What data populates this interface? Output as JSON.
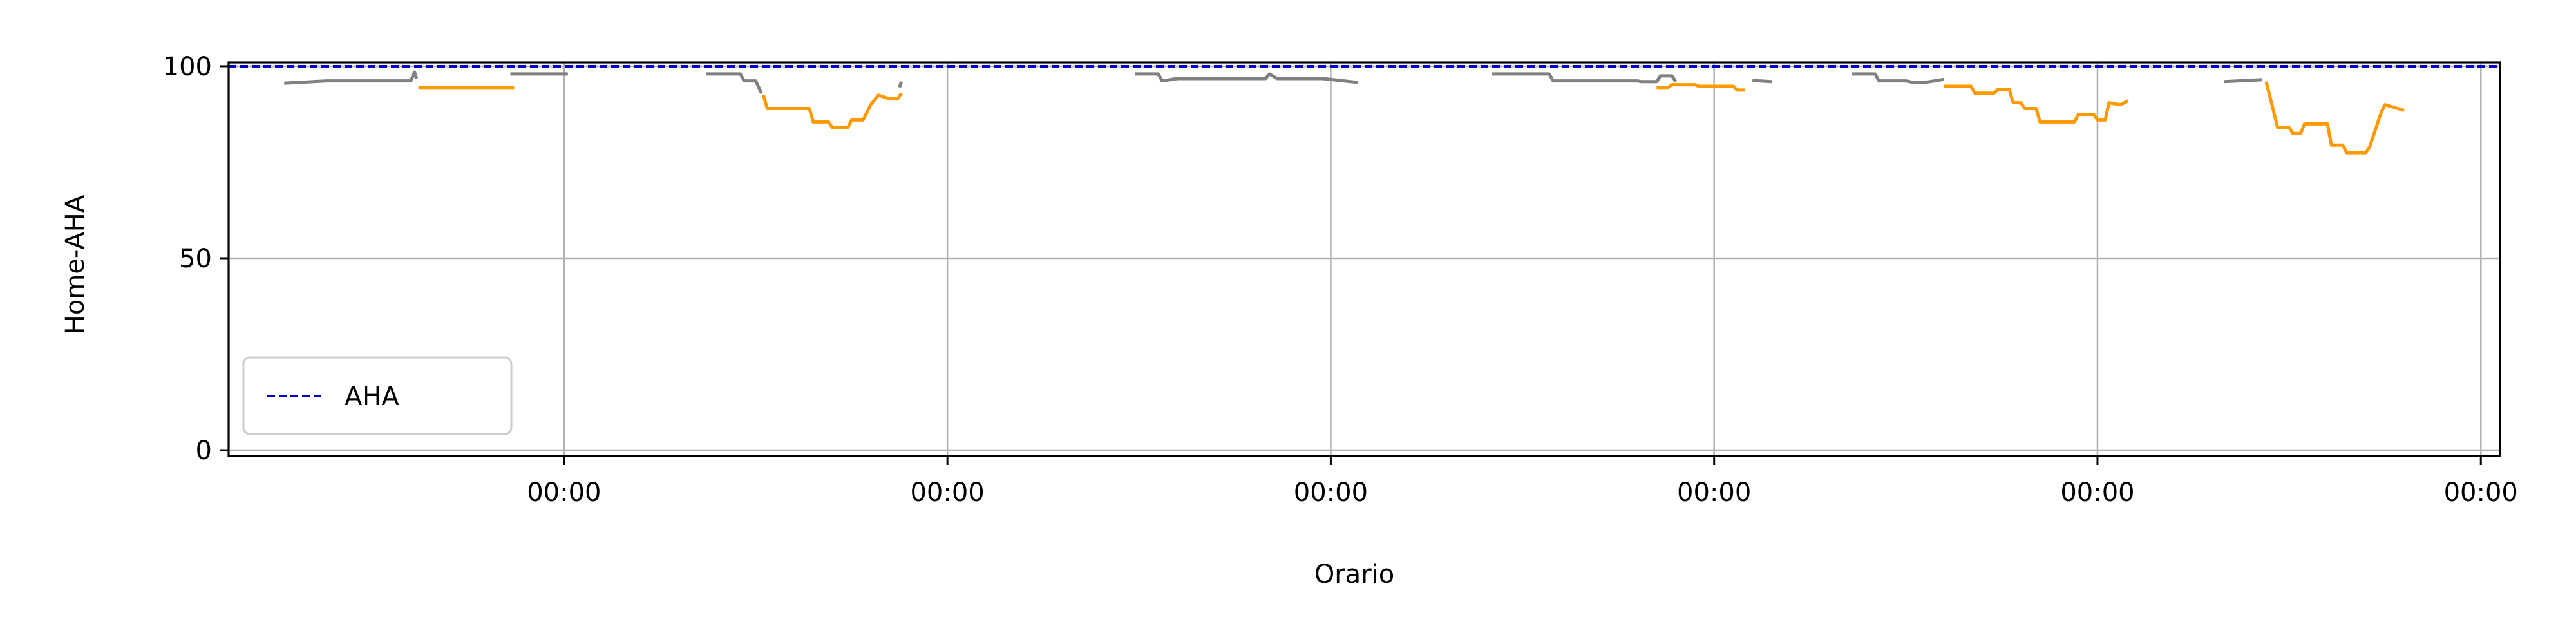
{
  "chart_data": {
    "type": "line",
    "title": "",
    "xlabel": "Orario",
    "ylabel": "Home-AHA",
    "xlim": [
      -0.875,
      5.05
    ],
    "ylim": [
      -1.5,
      101
    ],
    "x_tick_values": [
      0,
      1,
      2,
      3,
      4,
      5
    ],
    "x_tick_labels": [
      "00:00",
      "00:00",
      "00:00",
      "00:00",
      "00:00",
      "00:00"
    ],
    "y_tick_values": [
      0,
      50,
      100
    ],
    "y_tick_labels": [
      "0",
      "50",
      "100"
    ],
    "grid": true,
    "legend": {
      "placement": "lower-left",
      "entries": [
        {
          "name": "AHA",
          "color": "#0000cc",
          "style": "dashed"
        }
      ]
    },
    "reference_line": {
      "name": "AHA",
      "y": 100,
      "color": "#0000cc",
      "style": "dashed"
    },
    "colors": {
      "gray_segments": "#808080",
      "orange_segments": "#ff9900"
    },
    "segments": [
      {
        "color": "gray",
        "points": [
          [
            -0.73,
            95.6
          ],
          [
            -0.62,
            96.2
          ],
          [
            -0.4,
            96.2
          ],
          [
            -0.39,
            98.5
          ],
          [
            -0.385,
            96.8
          ]
        ]
      },
      {
        "color": "orange",
        "points": [
          [
            -0.38,
            94.5
          ],
          [
            -0.13,
            94.5
          ]
        ]
      },
      {
        "color": "gray",
        "points": [
          [
            -0.14,
            98
          ],
          [
            0.01,
            98
          ]
        ]
      },
      {
        "color": "gray",
        "points": [
          [
            0.37,
            98
          ],
          [
            0.46,
            98
          ],
          [
            0.47,
            96.2
          ],
          [
            0.5,
            96.2
          ],
          [
            0.515,
            93
          ]
        ]
      },
      {
        "color": "orange",
        "points": [
          [
            0.52,
            92.5
          ],
          [
            0.53,
            89
          ],
          [
            0.64,
            89
          ],
          [
            0.65,
            85.5
          ],
          [
            0.69,
            85.5
          ],
          [
            0.7,
            84
          ],
          [
            0.74,
            84
          ],
          [
            0.75,
            86
          ],
          [
            0.78,
            86
          ],
          [
            0.8,
            90
          ],
          [
            0.82,
            92.5
          ],
          [
            0.85,
            91.5
          ],
          [
            0.87,
            91.5
          ],
          [
            0.88,
            93
          ]
        ]
      },
      {
        "color": "gray",
        "points": [
          [
            0.875,
            94.5
          ],
          [
            0.88,
            96
          ]
        ]
      },
      {
        "color": "gray",
        "points": [
          [
            1.49,
            98
          ],
          [
            1.55,
            98
          ],
          [
            1.56,
            96.2
          ],
          [
            1.6,
            96.8
          ],
          [
            1.83,
            96.8
          ],
          [
            1.84,
            98
          ],
          [
            1.86,
            96.8
          ],
          [
            1.98,
            96.8
          ],
          [
            2.07,
            95.8
          ]
        ]
      },
      {
        "color": "gray",
        "points": [
          [
            2.42,
            98
          ],
          [
            2.57,
            98
          ],
          [
            2.58,
            96.2
          ],
          [
            2.8,
            96.2
          ],
          [
            2.81,
            96
          ],
          [
            2.85,
            96
          ],
          [
            2.86,
            97.5
          ],
          [
            2.89,
            97.5
          ],
          [
            2.9,
            96
          ]
        ]
      },
      {
        "color": "orange",
        "points": [
          [
            2.85,
            94.5
          ],
          [
            2.88,
            94.5
          ],
          [
            2.89,
            95.2
          ],
          [
            2.95,
            95.2
          ],
          [
            2.96,
            94.8
          ],
          [
            3.05,
            94.8
          ],
          [
            3.06,
            93.8
          ],
          [
            3.08,
            93.8
          ]
        ]
      },
      {
        "color": "gray",
        "points": [
          [
            3.1,
            96.3
          ],
          [
            3.15,
            96
          ]
        ]
      },
      {
        "color": "gray",
        "points": [
          [
            3.36,
            98
          ],
          [
            3.42,
            98
          ],
          [
            3.43,
            96.2
          ],
          [
            3.5,
            96.2
          ],
          [
            3.52,
            95.8
          ],
          [
            3.55,
            95.8
          ],
          [
            3.6,
            96.6
          ]
        ]
      },
      {
        "color": "orange",
        "points": [
          [
            3.6,
            94.8
          ],
          [
            3.67,
            94.8
          ],
          [
            3.68,
            93
          ],
          [
            3.73,
            93
          ],
          [
            3.74,
            94
          ],
          [
            3.77,
            94
          ],
          [
            3.78,
            90.5
          ],
          [
            3.8,
            90.5
          ],
          [
            3.81,
            89
          ],
          [
            3.84,
            89
          ],
          [
            3.85,
            85.5
          ],
          [
            3.94,
            85.5
          ],
          [
            3.95,
            87.5
          ],
          [
            3.99,
            87.5
          ],
          [
            4.0,
            86
          ],
          [
            4.02,
            86
          ],
          [
            4.03,
            90.5
          ],
          [
            4.06,
            90
          ],
          [
            4.08,
            91
          ]
        ]
      },
      {
        "color": "gray",
        "points": [
          [
            4.33,
            96
          ],
          [
            4.43,
            96.5
          ]
        ]
      },
      {
        "color": "orange",
        "points": [
          [
            4.44,
            96
          ],
          [
            4.46,
            88
          ],
          [
            4.47,
            84
          ],
          [
            4.5,
            84
          ],
          [
            4.51,
            82.5
          ],
          [
            4.53,
            82.5
          ],
          [
            4.54,
            85
          ],
          [
            4.6,
            85
          ],
          [
            4.61,
            79.5
          ],
          [
            4.64,
            79.5
          ],
          [
            4.65,
            77.5
          ],
          [
            4.7,
            77.5
          ],
          [
            4.71,
            79
          ],
          [
            4.74,
            88
          ],
          [
            4.75,
            90
          ],
          [
            4.8,
            88.5
          ]
        ]
      }
    ]
  }
}
